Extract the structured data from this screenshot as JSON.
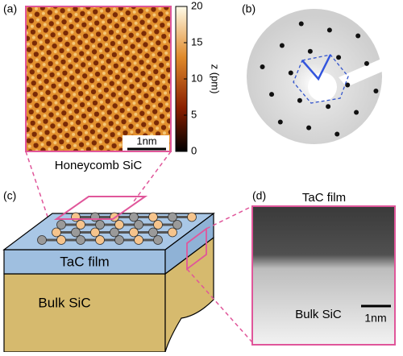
{
  "panels": [
    "(a)",
    "(b)",
    "(c)",
    "(d)"
  ],
  "stm": {
    "scale_bar": "1nm",
    "caption": "Honeycomb SiC"
  },
  "colorbar": {
    "label": "z (pm)",
    "lim": [
      0,
      20
    ],
    "ticks": [
      0,
      5,
      10,
      15,
      20
    ]
  },
  "schematic": {
    "film": "TaC film",
    "bulk": "Bulk SiC"
  },
  "tem": {
    "film": "TaC film",
    "bulk": "Bulk SiC",
    "scale_bar": "1nm"
  }
}
